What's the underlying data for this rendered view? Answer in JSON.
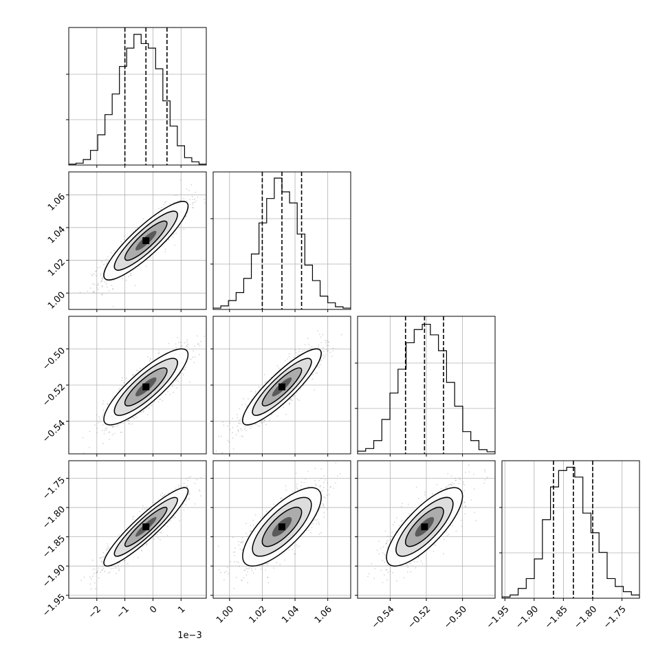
{
  "chart_data": {
    "type": "corner",
    "x_offset_label": "1e−3",
    "grid": true,
    "parameters": [
      {
        "range": [
          -3.0,
          1.9
        ],
        "ticks": [
          -2,
          -1,
          0,
          1
        ],
        "tick_labels": [
          "−2",
          "−1",
          "0",
          "1"
        ],
        "quantiles": [
          -1.0,
          -0.25,
          0.5
        ]
      },
      {
        "range": [
          0.99,
          1.074
        ],
        "ticks": [
          1.0,
          1.02,
          1.04,
          1.06
        ],
        "tick_labels": [
          "1.00",
          "1.02",
          "1.04",
          "1.06"
        ],
        "quantiles": [
          1.02,
          1.032,
          1.044
        ]
      },
      {
        "range": [
          -0.558,
          -0.482
        ],
        "ticks": [
          -0.54,
          -0.52,
          -0.5
        ],
        "tick_labels": [
          "−0.54",
          "−0.52",
          "−0.50"
        ],
        "quantiles": [
          -0.5315,
          -0.521,
          -0.5105
        ]
      },
      {
        "range": [
          -1.955,
          -1.72
        ],
        "ticks": [
          -1.95,
          -1.9,
          -1.85,
          -1.8,
          -1.75
        ],
        "tick_labels": [
          "−1.95",
          "−1.90",
          "−1.85",
          "−1.80",
          "−1.75"
        ],
        "quantiles": [
          -1.867,
          -1.833,
          -1.8
        ]
      }
    ],
    "histograms": [
      {
        "counts": [
          0.2,
          0.4,
          1.2,
          3.2,
          6.6,
          11,
          15.5,
          21.5,
          25.5,
          28.5,
          26.5,
          25.5,
          21,
          14,
          8.5,
          4.2,
          1.6,
          0.7,
          0.2
        ],
        "ylim": [
          0,
          30
        ]
      },
      {
        "counts": [
          0.3,
          0.8,
          2,
          3.8,
          7,
          12.5,
          19.5,
          25,
          29.6,
          26.5,
          24,
          17,
          10,
          6.5,
          3,
          1.5,
          0.6,
          0.3
        ],
        "ylim": [
          0,
          31
        ]
      },
      {
        "counts": [
          0.5,
          1,
          2.5,
          6.5,
          11.5,
          16,
          21,
          23.5,
          24.5,
          22.5,
          19.5,
          13.5,
          9,
          4.2,
          2.5,
          0.8,
          0.4
        ],
        "ylim": [
          0,
          26
        ]
      },
      {
        "counts": [
          0.2,
          0.5,
          1.5,
          3,
          6,
          12,
          17,
          19.5,
          20,
          18.5,
          13,
          10,
          7,
          3,
          1.8,
          1,
          0.5
        ],
        "ylim": [
          0,
          21
        ]
      }
    ],
    "correlations": [
      {
        "i": 1,
        "j": 0,
        "rho": 0.88
      },
      {
        "i": 2,
        "j": 0,
        "rho": 0.85
      },
      {
        "i": 2,
        "j": 1,
        "rho": 0.88
      },
      {
        "i": 3,
        "j": 0,
        "rho": 0.92
      },
      {
        "i": 3,
        "j": 1,
        "rho": 0.75
      },
      {
        "i": 3,
        "j": 2,
        "rho": 0.78
      }
    ]
  }
}
